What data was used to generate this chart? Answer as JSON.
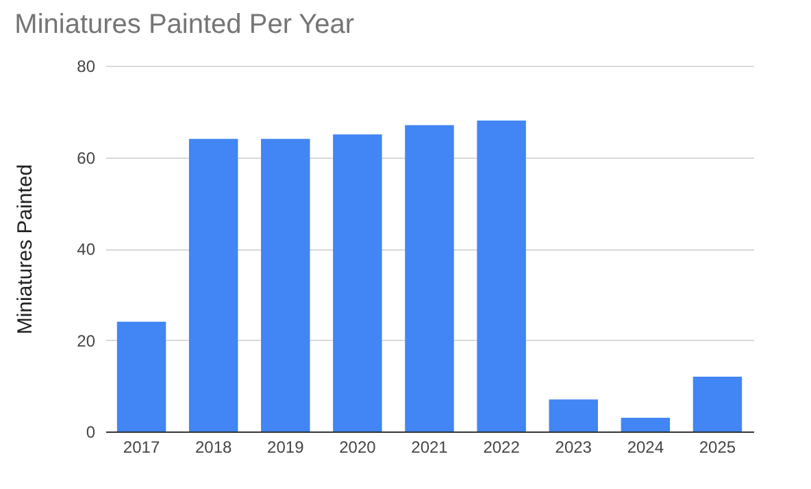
{
  "chart_data": {
    "type": "bar",
    "title": "Miniatures Painted Per Year",
    "ylabel": "Miniatures Painted",
    "categories": [
      "2017",
      "2018",
      "2019",
      "2020",
      "2021",
      "2022",
      "2023",
      "2024",
      "2025"
    ],
    "values": [
      24,
      64,
      64,
      65,
      67,
      68,
      7,
      3,
      12
    ],
    "color": "#4285f4",
    "ylim": [
      0,
      80
    ],
    "yticks": [
      0,
      20,
      40,
      60,
      80
    ],
    "grid": "y"
  }
}
